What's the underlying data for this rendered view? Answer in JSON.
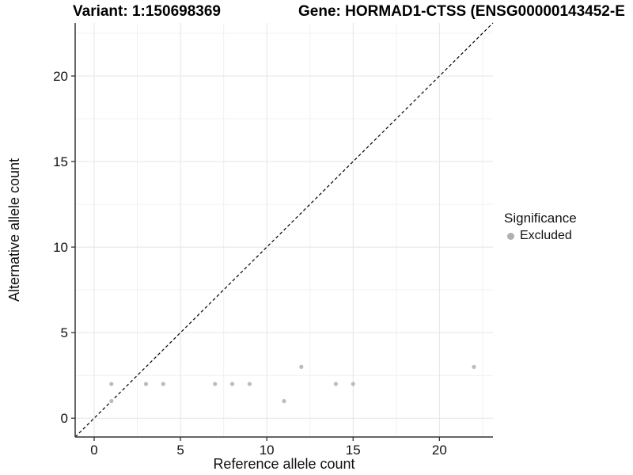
{
  "titles": {
    "variant": "Variant: 1:150698369",
    "gene": "Gene: HORMAD1-CTSS (ENSG00000143452-E"
  },
  "legend": {
    "title": "Significance",
    "items": [
      {
        "label": "Excluded",
        "color": "#b0b0b0"
      }
    ]
  },
  "chart_data": {
    "type": "scatter",
    "title": "",
    "xlabel": "Reference allele count",
    "ylabel": "Alternative allele count",
    "xlim": [
      -1.1,
      23.1
    ],
    "ylim": [
      -1.1,
      23.1
    ],
    "x_ticks": [
      0,
      5,
      10,
      15,
      20
    ],
    "y_ticks": [
      0,
      5,
      10,
      15,
      20
    ],
    "x_minor": [
      2.5,
      7.5,
      12.5,
      17.5,
      22.5
    ],
    "y_minor": [
      2.5,
      7.5,
      12.5,
      17.5,
      22.5
    ],
    "grid": "major+minor",
    "legend_position": "right",
    "identity_line": {
      "style": "dashed",
      "slope": 1,
      "intercept": 0,
      "color": "#000000"
    },
    "series": [
      {
        "name": "Excluded",
        "color": "#bcbcbc",
        "points": [
          [
            1,
            1
          ],
          [
            1,
            2
          ],
          [
            3,
            2
          ],
          [
            4,
            2
          ],
          [
            7,
            2
          ],
          [
            8,
            2
          ],
          [
            9,
            2
          ],
          [
            11,
            1
          ],
          [
            12,
            3
          ],
          [
            14,
            2
          ],
          [
            15,
            2
          ],
          [
            22,
            3
          ]
        ]
      }
    ],
    "colors": {
      "grid_major": "#e4e4e4",
      "grid_minor": "#f1f1f1",
      "axis_line": "#333333",
      "tick_text": "#111111"
    }
  }
}
